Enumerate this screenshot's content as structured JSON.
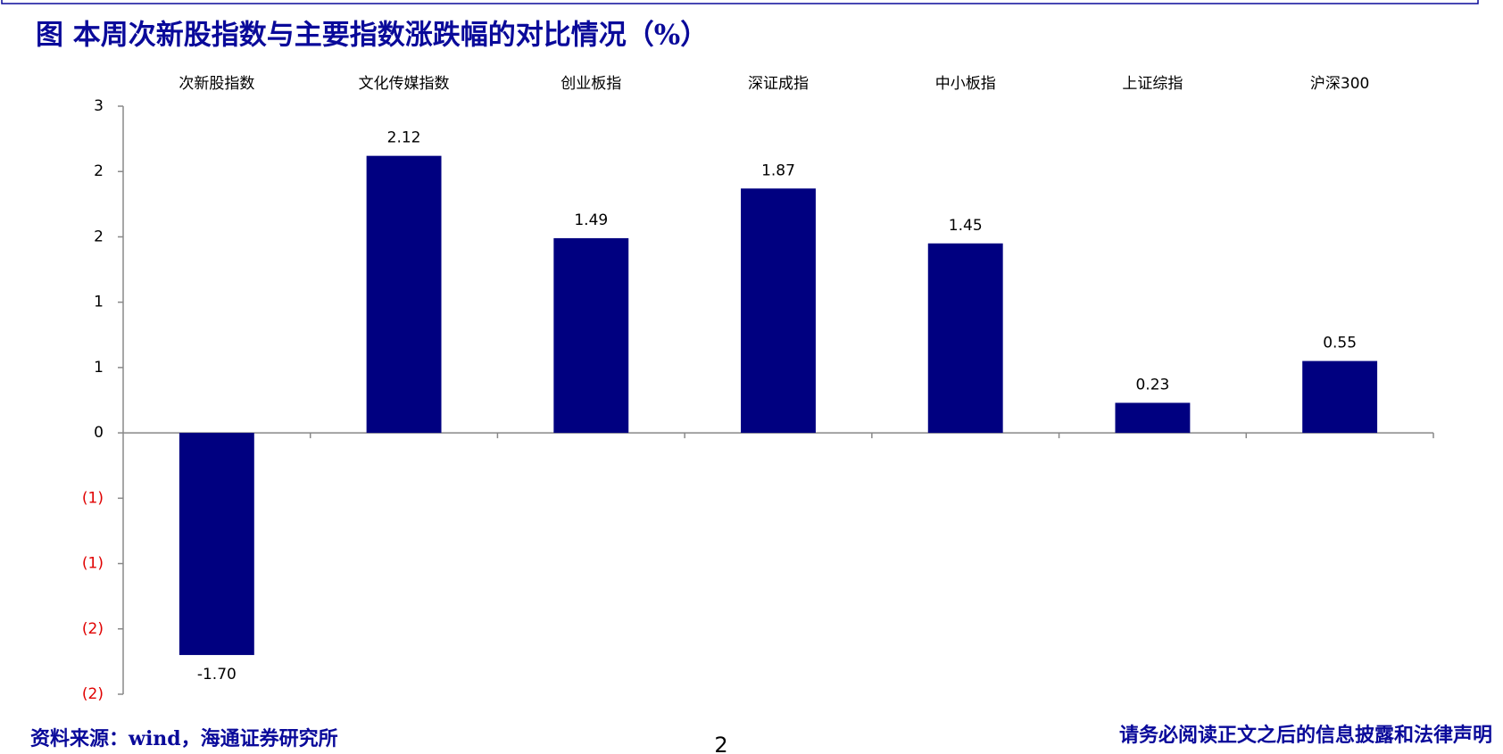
{
  "chart_data": {
    "type": "bar",
    "title": "图 本周次新股指数与主要指数涨跌幅的对比情况（%）",
    "categories": [
      "次新股指数",
      "文化传媒指数",
      "创业板指",
      "深证成指",
      "中小板指",
      "上证综指",
      "沪深300"
    ],
    "values": [
      -1.7,
      2.12,
      1.49,
      1.87,
      1.45,
      0.23,
      0.55
    ],
    "value_labels": [
      "-1.70",
      "2.12",
      "1.49",
      "1.87",
      "1.45",
      "0.23",
      "0.55"
    ],
    "color": "#000080",
    "ylim": [
      -2,
      2.5
    ],
    "yticks": [
      {
        "value": 2.5,
        "label": "3"
      },
      2,
      {
        "value": 1.5,
        "label": "2"
      },
      1,
      {
        "value": 0.5,
        "label": "1"
      },
      0,
      {
        "value": -0.5,
        "label": "(1)"
      },
      {
        "value": -1,
        "label": "(1)"
      },
      {
        "value": -1.5,
        "label": "(2)"
      },
      {
        "value": -2,
        "label": "(2)"
      }
    ],
    "grid": false
  },
  "footer": {
    "source": "资料来源：wind，海通证券研究所",
    "page_number": "2",
    "disclaimer": "请务必阅读正文之后的信息披露和法律声明"
  }
}
